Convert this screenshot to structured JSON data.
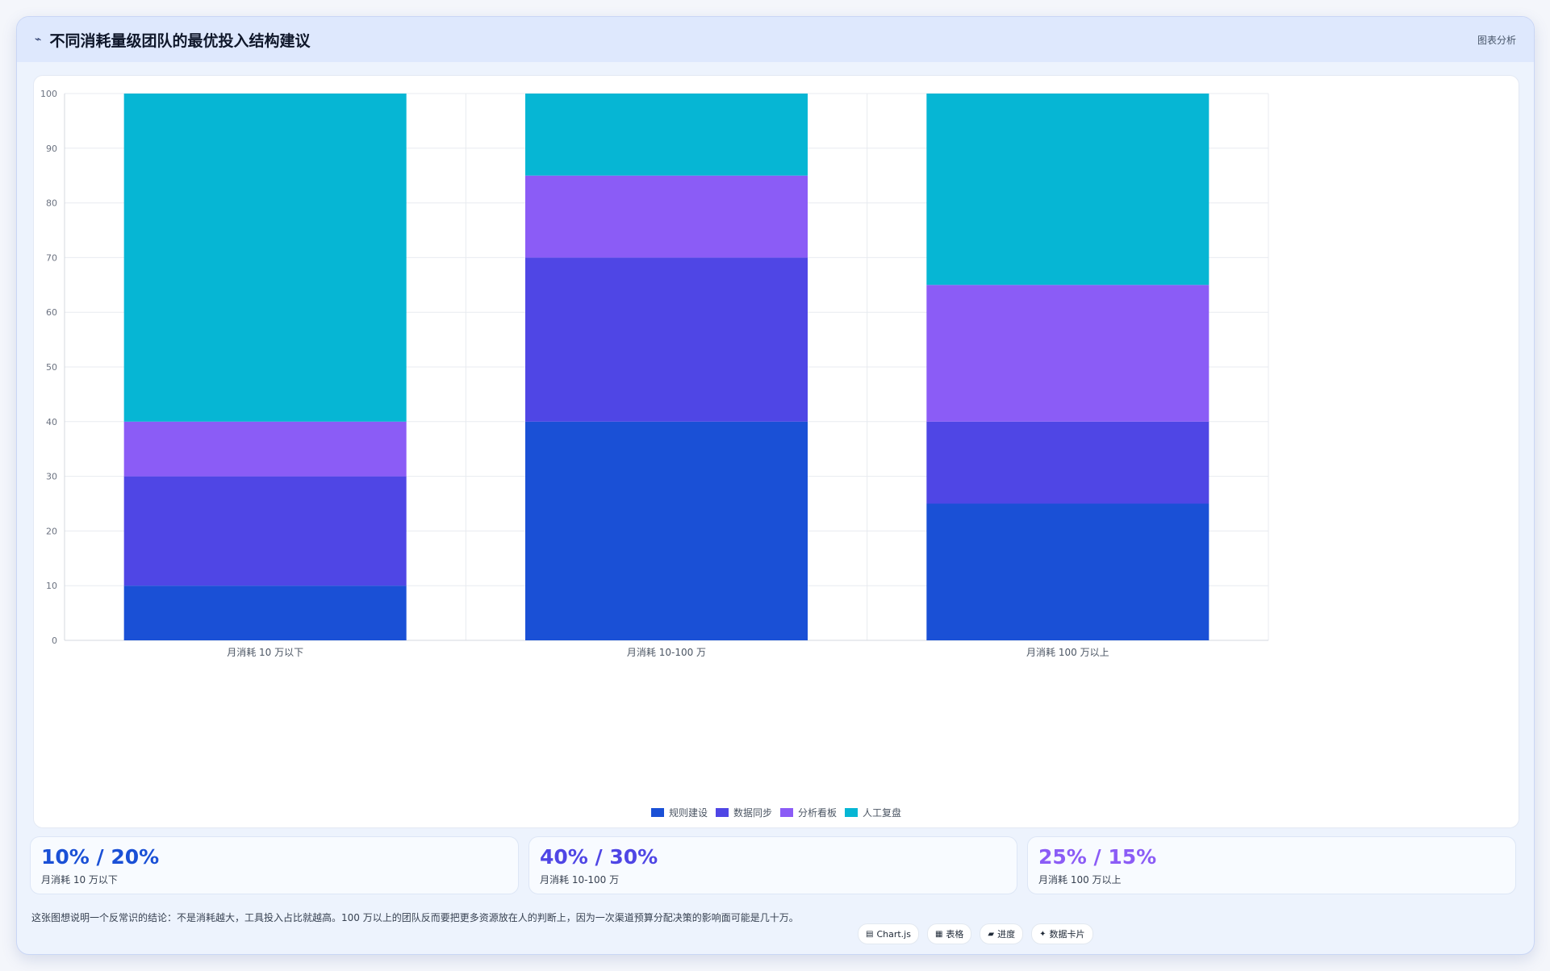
{
  "header": {
    "icon": "chart-line-icon",
    "title": "不同消耗量级团队的最优投入结构建议",
    "tag": "图表分析"
  },
  "chart_data": {
    "type": "bar",
    "stacked": true,
    "categories": [
      "月消耗 10 万以下",
      "月消耗 10-100 万",
      "月消耗 100 万以上"
    ],
    "series": [
      {
        "name": "规则建设",
        "color": "#1a50d6",
        "values": [
          10,
          40,
          25
        ]
      },
      {
        "name": "数据同步",
        "color": "#4f46e5",
        "values": [
          20,
          30,
          15
        ]
      },
      {
        "name": "分析看板",
        "color": "#8b5cf6",
        "values": [
          10,
          15,
          25
        ]
      },
      {
        "name": "人工复盘",
        "color": "#06b6d4",
        "values": [
          60,
          15,
          35
        ]
      }
    ],
    "ylim": [
      0,
      100
    ],
    "yticks": [
      0,
      10,
      20,
      30,
      40,
      50,
      60,
      70,
      80,
      90,
      100
    ],
    "grid": true,
    "legend": "bottom"
  },
  "stats": [
    {
      "value": "10% / 20%",
      "label": "月消耗 10 万以下",
      "color": "#1a50d6"
    },
    {
      "value": "40% / 30%",
      "label": "月消耗 10-100 万",
      "color": "#4f46e5"
    },
    {
      "value": "25% / 15%",
      "label": "月消耗 100 万以上",
      "color": "#8b5cf6"
    }
  ],
  "footer": {
    "note": "这张图想说明一个反常识的结论：不是消耗越大，工具投入占比就越高。100 万以上的团队反而要把更多资源放在人的判断上，因为一次渠道预算分配决策的影响面可能是几十万。",
    "chips": [
      {
        "icon": "chart-icon",
        "glyph": "▤",
        "label": "Chart.js"
      },
      {
        "icon": "table-icon",
        "glyph": "▦",
        "label": "表格"
      },
      {
        "icon": "progress-icon",
        "glyph": "▰",
        "label": "进度"
      },
      {
        "icon": "sparkle-icon",
        "glyph": "✦",
        "label": "数据卡片"
      }
    ]
  }
}
